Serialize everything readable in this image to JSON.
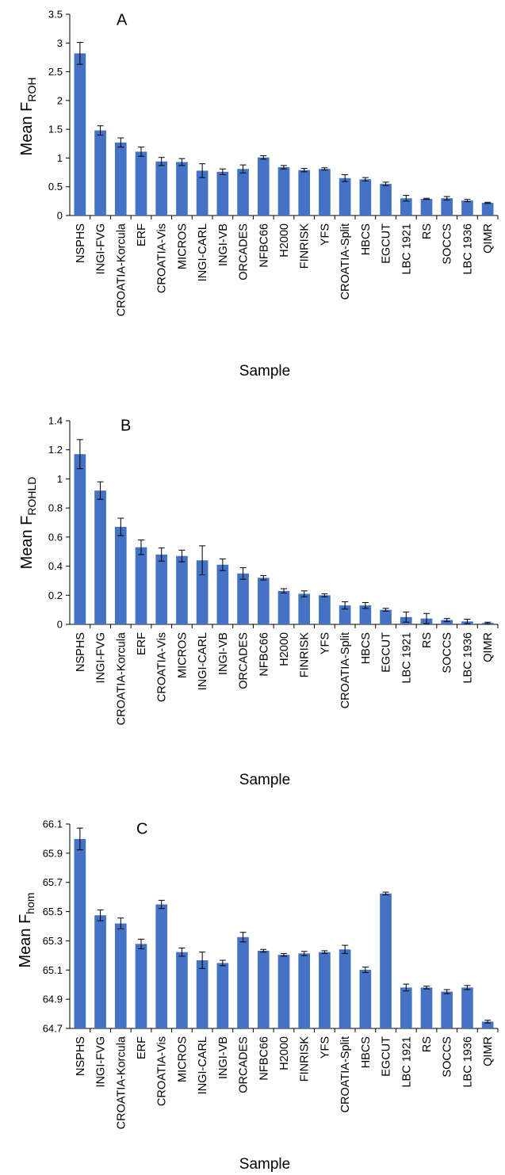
{
  "colors": {
    "bar": "#4472C4",
    "axis": "#000000",
    "error": "#000000"
  },
  "chart_data": [
    {
      "type": "bar",
      "panel_label": "A",
      "ylabel_main": "Mean F",
      "ylabel_sub": "ROH",
      "xlabel": "Sample",
      "ylim": [
        0,
        3.5
      ],
      "yticks": [
        "0",
        "0.5",
        "1",
        "1.5",
        "2",
        "2.5",
        "3",
        "3.5"
      ],
      "categories": [
        "NSPHS",
        "INGI-FVG",
        "CROATIA-Korcula",
        "ERF",
        "CROATIA-Vis",
        "MICROS",
        "INGI-CARL",
        "INGI-VB",
        "ORCADES",
        "NFBC66",
        "H2000",
        "FINRISK",
        "YFS",
        "CROATIA-Split",
        "HBCS",
        "EGCUT",
        "LBC 1921",
        "RS",
        "SOCCS",
        "LBC 1936",
        "QIMR"
      ],
      "values": [
        2.82,
        1.48,
        1.27,
        1.11,
        0.94,
        0.93,
        0.78,
        0.76,
        0.81,
        1.01,
        0.84,
        0.79,
        0.81,
        0.65,
        0.63,
        0.55,
        0.3,
        0.29,
        0.3,
        0.26,
        0.22
      ],
      "errors": [
        0.19,
        0.08,
        0.08,
        0.08,
        0.07,
        0.06,
        0.12,
        0.05,
        0.07,
        0.03,
        0.03,
        0.03,
        0.02,
        0.06,
        0.03,
        0.03,
        0.05,
        0.01,
        0.03,
        0.02,
        0.01
      ]
    },
    {
      "type": "bar",
      "panel_label": "B",
      "ylabel_main": "Mean F",
      "ylabel_sub": "ROHLD",
      "xlabel": "Sample",
      "ylim": [
        0,
        1.4
      ],
      "yticks": [
        "0",
        "0.2",
        "0.4",
        "0.6",
        "0.8",
        "1",
        "1.2",
        "1.4"
      ],
      "categories": [
        "NSPHS",
        "INGI-FVG",
        "CROATIA-Korcula",
        "ERF",
        "CROATIA-Vis",
        "MICROS",
        "INGI-CARL",
        "INGI-VB",
        "ORCADES",
        "NFBC66",
        "H2000",
        "FINRISK",
        "YFS",
        "CROATIA-Split",
        "HBCS",
        "EGCUT",
        "LBC 1921",
        "RS",
        "SOCCS",
        "LBC 1936",
        "QIMR"
      ],
      "values": [
        1.17,
        0.92,
        0.67,
        0.53,
        0.48,
        0.47,
        0.44,
        0.41,
        0.35,
        0.32,
        0.23,
        0.21,
        0.2,
        0.13,
        0.13,
        0.1,
        0.05,
        0.04,
        0.03,
        0.02,
        0.01
      ],
      "errors": [
        0.1,
        0.06,
        0.06,
        0.05,
        0.045,
        0.04,
        0.1,
        0.04,
        0.04,
        0.015,
        0.015,
        0.02,
        0.01,
        0.025,
        0.02,
        0.01,
        0.035,
        0.035,
        0.01,
        0.015,
        0.005
      ]
    },
    {
      "type": "bar",
      "panel_label": "C",
      "ylabel_main": "Mean F",
      "ylabel_sub": "hom",
      "xlabel": "Sample",
      "ylim": [
        64.7,
        66.2
      ],
      "yticks": [
        "64.7",
        "64.9",
        "65.1",
        "65.3",
        "65.5",
        "65.7",
        "65.9",
        "66.1"
      ],
      "categories": [
        "NSPHS",
        "INGI-FVG",
        "CROATIA-Korcula",
        "ERF",
        "CROATIA-Vis",
        "MICROS",
        "INGI-CARL",
        "INGI-VB",
        "ORCADES",
        "NFBC66",
        "H2000",
        "FINRISK",
        "YFS",
        "CROATIA-Split",
        "HBCS",
        "EGCUT",
        "LBC 1921",
        "RS",
        "SOCCS",
        "LBC 1936",
        "QIMR"
      ],
      "values": [
        66.09,
        65.53,
        65.47,
        65.32,
        65.61,
        65.26,
        65.2,
        65.18,
        65.37,
        65.27,
        65.24,
        65.25,
        65.26,
        65.28,
        65.13,
        65.69,
        65.0,
        65.0,
        64.97,
        65.0,
        64.75
      ],
      "errors": [
        0.08,
        0.04,
        0.04,
        0.035,
        0.03,
        0.03,
        0.06,
        0.02,
        0.035,
        0.01,
        0.01,
        0.015,
        0.01,
        0.03,
        0.02,
        0.01,
        0.025,
        0.01,
        0.015,
        0.015,
        0.01
      ]
    }
  ]
}
